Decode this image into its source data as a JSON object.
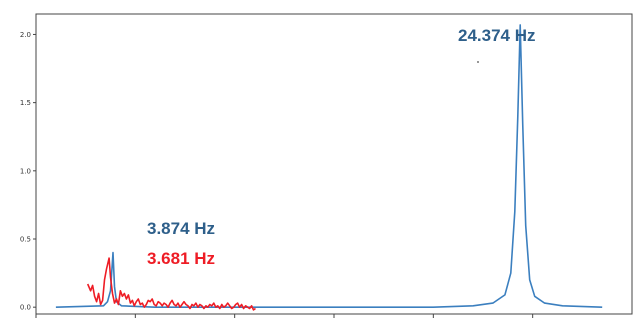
{
  "chart_data": {
    "type": "line",
    "title": "",
    "xlabel": "",
    "ylabel": "",
    "xlim": [
      0,
      30
    ],
    "ylim": [
      -0.05,
      2.15
    ],
    "yticks": [
      0.0,
      0.5,
      1.0,
      1.5,
      2.0
    ],
    "ytick_labels": [
      "0.0",
      "0.5",
      "1.0",
      "1.5",
      "2.0"
    ],
    "grid": false,
    "series": [
      {
        "color": "#3b7fbf",
        "points": [
          [
            1.0,
            0.0
          ],
          [
            3.4,
            0.01
          ],
          [
            3.6,
            0.04
          ],
          [
            3.75,
            0.12
          ],
          [
            3.874,
            0.4
          ],
          [
            3.95,
            0.15
          ],
          [
            4.05,
            0.04
          ],
          [
            4.3,
            0.01
          ],
          [
            6,
            0.0
          ],
          [
            10,
            0.0
          ],
          [
            15,
            0.0
          ],
          [
            20,
            0.0
          ],
          [
            22,
            0.01
          ],
          [
            23,
            0.03
          ],
          [
            23.6,
            0.09
          ],
          [
            23.9,
            0.25
          ],
          [
            24.1,
            0.7
          ],
          [
            24.25,
            1.4
          ],
          [
            24.374,
            2.07
          ],
          [
            24.5,
            1.35
          ],
          [
            24.65,
            0.6
          ],
          [
            24.85,
            0.2
          ],
          [
            25.1,
            0.08
          ],
          [
            25.6,
            0.03
          ],
          [
            26.5,
            0.01
          ],
          [
            28.5,
            0.0
          ]
        ]
      },
      {
        "color": "#ee1c25",
        "points": [
          [
            2.6,
            0.17
          ],
          [
            2.75,
            0.12
          ],
          [
            2.85,
            0.16
          ],
          [
            2.95,
            0.08
          ],
          [
            3.05,
            0.04
          ],
          [
            3.15,
            0.1
          ],
          [
            3.25,
            0.02
          ],
          [
            3.35,
            0.05
          ],
          [
            3.45,
            0.2
          ],
          [
            3.55,
            0.28
          ],
          [
            3.681,
            0.36
          ],
          [
            3.75,
            0.22
          ],
          [
            3.85,
            0.1
          ],
          [
            3.95,
            0.03
          ],
          [
            4.05,
            0.06
          ],
          [
            4.15,
            0.02
          ],
          [
            4.25,
            0.12
          ],
          [
            4.35,
            0.08
          ],
          [
            4.45,
            0.1
          ],
          [
            4.55,
            0.06
          ],
          [
            4.65,
            0.09
          ],
          [
            4.75,
            0.03
          ],
          [
            4.85,
            0.05
          ],
          [
            4.95,
            0.01
          ],
          [
            5.05,
            0.04
          ],
          [
            5.15,
            0.06
          ],
          [
            5.25,
            0.02
          ],
          [
            5.35,
            0.03
          ],
          [
            5.45,
            0.0
          ],
          [
            5.55,
            0.02
          ],
          [
            5.65,
            0.05
          ],
          [
            5.75,
            0.04
          ],
          [
            5.85,
            0.06
          ],
          [
            5.95,
            0.02
          ],
          [
            6.05,
            0.01
          ],
          [
            6.15,
            0.04
          ],
          [
            6.25,
            0.03
          ],
          [
            6.35,
            0.01
          ],
          [
            6.45,
            0.03
          ],
          [
            6.55,
            0.02
          ],
          [
            6.65,
            0.0
          ],
          [
            6.75,
            0.03
          ],
          [
            6.85,
            0.05
          ],
          [
            6.95,
            0.02
          ],
          [
            7.05,
            0.01
          ],
          [
            7.15,
            0.03
          ],
          [
            7.25,
            0.0
          ],
          [
            7.35,
            0.02
          ],
          [
            7.45,
            0.04
          ],
          [
            7.55,
            0.02
          ],
          [
            7.65,
            0.01
          ],
          [
            7.75,
            -0.01
          ],
          [
            7.85,
            0.02
          ],
          [
            7.95,
            0.01
          ],
          [
            8.05,
            0.03
          ],
          [
            8.15,
            0.0
          ],
          [
            8.25,
            0.02
          ],
          [
            8.35,
            0.01
          ],
          [
            8.45,
            -0.01
          ],
          [
            8.55,
            0.01
          ],
          [
            8.65,
            0.0
          ],
          [
            8.75,
            0.02
          ],
          [
            8.85,
            0.01
          ],
          [
            8.95,
            0.03
          ],
          [
            9.05,
            0.0
          ],
          [
            9.15,
            0.01
          ],
          [
            9.25,
            -0.01
          ],
          [
            9.35,
            0.02
          ],
          [
            9.45,
            0.0
          ],
          [
            9.55,
            0.01
          ],
          [
            9.65,
            0.03
          ],
          [
            9.75,
            0.01
          ],
          [
            9.85,
            -0.01
          ],
          [
            9.95,
            0.0
          ],
          [
            10.05,
            0.02
          ],
          [
            10.15,
            0.03
          ],
          [
            10.25,
            0.0
          ],
          [
            10.35,
            0.02
          ],
          [
            10.45,
            -0.01
          ],
          [
            10.55,
            0.01
          ],
          [
            10.65,
            0.0
          ],
          [
            10.75,
            -0.01
          ],
          [
            10.85,
            0.01
          ],
          [
            10.95,
            -0.02
          ],
          [
            11.05,
            -0.01
          ]
        ]
      }
    ],
    "annotations": [
      {
        "text": "24.374 Hz",
        "x": 24.374,
        "color": "#2e5f8a"
      },
      {
        "text": "3.874 Hz",
        "x": 3.874,
        "color": "#2e5f8a"
      },
      {
        "text": "3.681 Hz",
        "x": 3.681,
        "color": "#ee1c25"
      }
    ]
  }
}
